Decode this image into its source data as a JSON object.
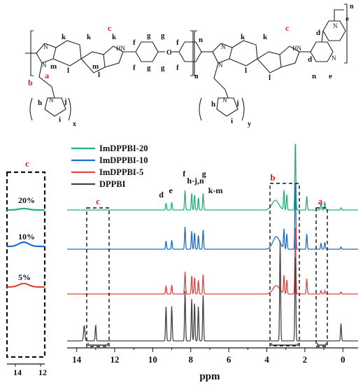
{
  "structure": {
    "labels_black": [
      "k",
      "k",
      "k",
      "l",
      "m",
      "m",
      "l",
      "f",
      "g",
      "f",
      "g",
      "g",
      "f",
      "g",
      "f",
      "n",
      "k",
      "k",
      "l",
      "l",
      "d",
      "d",
      "e",
      "n",
      "e",
      "h",
      "j",
      "i",
      "h",
      "j",
      "i"
    ],
    "labels_red": [
      "c",
      "c",
      "b",
      "a"
    ],
    "subscripts": [
      "x",
      "y",
      "n",
      "n"
    ],
    "atom_N": "N",
    "atom_NH": "H\nN",
    "atom_O": "O"
  },
  "inset": {
    "header": "c",
    "x_ticks": [
      "14",
      "12"
    ],
    "labels": [
      "20%",
      "10%",
      "5%"
    ],
    "colors": [
      "#1db37a",
      "#1b6fc8",
      "#e0453f"
    ]
  },
  "chart_data": {
    "type": "line",
    "xlabel": "ppm",
    "xlim": [
      14.5,
      -0.8
    ],
    "x_ticks": [
      14,
      12,
      10,
      8,
      6,
      4,
      2,
      0
    ],
    "series": [
      {
        "name": "ImDPPBI-20",
        "color": "#1db37a",
        "peaks": [
          [
            9.3,
            0.25
          ],
          [
            9.0,
            0.28
          ],
          [
            8.3,
            0.7
          ],
          [
            7.95,
            0.6
          ],
          [
            7.8,
            0.55
          ],
          [
            7.6,
            0.45
          ],
          [
            7.35,
            0.6
          ],
          [
            3.55,
            0.35
          ],
          [
            3.1,
            0.7
          ],
          [
            2.95,
            0.55
          ],
          [
            2.5,
            2.5
          ],
          [
            1.9,
            0.5
          ],
          [
            1.15,
            0.25
          ],
          [
            0.95,
            0.3
          ],
          [
            0.1,
            0.08
          ]
        ]
      },
      {
        "name": "ImDPPBI-10",
        "color": "#1b6fc8",
        "peaks": [
          [
            9.3,
            0.3
          ],
          [
            9.0,
            0.32
          ],
          [
            8.3,
            0.8
          ],
          [
            7.95,
            0.65
          ],
          [
            7.8,
            0.6
          ],
          [
            7.6,
            0.5
          ],
          [
            7.35,
            0.7
          ],
          [
            3.5,
            0.45
          ],
          [
            3.1,
            0.7
          ],
          [
            2.95,
            0.55
          ],
          [
            2.5,
            2.5
          ],
          [
            1.9,
            0.55
          ],
          [
            1.15,
            0.22
          ],
          [
            0.95,
            0.25
          ],
          [
            0.1,
            0.08
          ]
        ]
      },
      {
        "name": "ImDPPBI-5",
        "color": "#e0453f",
        "peaks": [
          [
            9.3,
            0.3
          ],
          [
            9.0,
            0.32
          ],
          [
            8.3,
            0.8
          ],
          [
            7.95,
            0.65
          ],
          [
            7.8,
            0.6
          ],
          [
            7.6,
            0.5
          ],
          [
            7.35,
            0.7
          ],
          [
            3.5,
            0.3
          ],
          [
            3.1,
            0.65
          ],
          [
            2.95,
            0.5
          ],
          [
            2.5,
            2.5
          ],
          [
            1.9,
            0.55
          ],
          [
            1.15,
            0.12
          ],
          [
            0.95,
            0.12
          ],
          [
            0.1,
            0.08
          ]
        ]
      },
      {
        "name": "DPPBI",
        "color": "#444444",
        "peaks": [
          [
            13.6,
            0.4
          ],
          [
            13.0,
            0.42
          ],
          [
            9.3,
            0.9
          ],
          [
            9.0,
            0.9
          ],
          [
            8.3,
            1.3
          ],
          [
            7.95,
            1.1
          ],
          [
            7.8,
            1.0
          ],
          [
            7.6,
            0.9
          ],
          [
            7.35,
            1.2
          ],
          [
            3.3,
            2.6
          ],
          [
            2.5,
            2.3
          ],
          [
            0.1,
            0.45
          ]
        ]
      }
    ],
    "annotations": {
      "peak_labels": [
        "d",
        "e",
        "f",
        "h-j,n",
        "g",
        "k-m"
      ],
      "box_labels_red": [
        "c",
        "b",
        "a"
      ]
    }
  }
}
